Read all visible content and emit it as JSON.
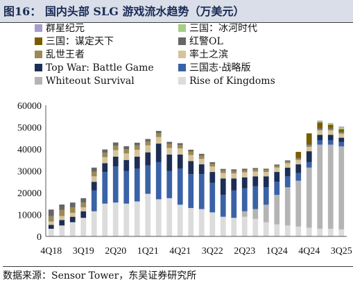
{
  "title": "图16：  国内头部 SLG 游戏流水趋势（万美元）",
  "source": "数据来源：Sensor Tower，东吴证券研究所",
  "chart_data": {
    "type": "bar",
    "stacked": true,
    "ylim": [
      0,
      60000
    ],
    "yticks": [
      0,
      10000,
      20000,
      30000,
      40000,
      50000,
      60000
    ],
    "categories": [
      "4Q18",
      "1Q19",
      "2Q19",
      "3Q19",
      "4Q19",
      "1Q20",
      "2Q20",
      "3Q20",
      "4Q20",
      "1Q21",
      "2Q21",
      "3Q21",
      "4Q21",
      "1Q22",
      "2Q22",
      "3Q22",
      "4Q22",
      "1Q23",
      "2Q23",
      "3Q23",
      "4Q23",
      "1Q24",
      "2Q24",
      "3Q24",
      "4Q24",
      "1Q25",
      "2Q25",
      "3Q25"
    ],
    "xtick_labels": [
      "4Q18",
      "3Q19",
      "2Q20",
      "1Q21",
      "4Q21",
      "3Q22",
      "2Q23",
      "1Q24",
      "4Q24",
      "3Q25"
    ],
    "legend_position": "top",
    "series": [
      {
        "name": "Rise of Kingdoms",
        "color": "#dcdcdc",
        "values": [
          3500,
          5000,
          6500,
          8500,
          11500,
          15000,
          15500,
          15000,
          16000,
          19500,
          17000,
          17500,
          14500,
          13000,
          12500,
          11000,
          9000,
          8500,
          9000,
          8000,
          6500,
          5500,
          5000,
          4500,
          4000,
          3500,
          3500,
          3200
        ]
      },
      {
        "name": "Whiteout Survival",
        "color": "#b4b4b4",
        "values": [
          0,
          0,
          0,
          0,
          0,
          0,
          0,
          0,
          0,
          0,
          0,
          0,
          0,
          0,
          0,
          0,
          0,
          0,
          2500,
          4500,
          8000,
          13500,
          17500,
          21000,
          27500,
          38500,
          38500,
          38000
        ]
      },
      {
        "name": "三国志·战略版",
        "color": "#3a62a6",
        "values": [
          0,
          0,
          0,
          0,
          9500,
          14500,
          16500,
          15000,
          15000,
          13000,
          17000,
          12500,
          16500,
          15500,
          16000,
          13500,
          10000,
          12500,
          10500,
          10500,
          8000,
          6000,
          5000,
          3500,
          2500,
          2000,
          2000,
          2000
        ]
      },
      {
        "name": "Top War: Battle Game",
        "color": "#1c2e55",
        "values": [
          1800,
          2500,
          2500,
          3000,
          4000,
          4000,
          4500,
          5000,
          5500,
          6000,
          8500,
          7500,
          6500,
          6000,
          4500,
          5000,
          7500,
          5500,
          5000,
          4500,
          5000,
          4500,
          4000,
          4000,
          5000,
          2500,
          2500,
          2000
        ]
      },
      {
        "name": "率土之滨",
        "color": "#d5c49a",
        "values": [
          1500,
          1800,
          1800,
          1800,
          2500,
          2800,
          3000,
          3000,
          3200,
          3200,
          3000,
          3000,
          2800,
          2800,
          2500,
          2500,
          2500,
          2300,
          2300,
          2200,
          2000,
          2000,
          2000,
          2000,
          2000,
          2000,
          2000,
          1800
        ]
      },
      {
        "name": "乱世王者",
        "color": "#9a8a55",
        "values": [
          2500,
          2800,
          2500,
          2200,
          2200,
          2000,
          2000,
          2000,
          2000,
          1800,
          1800,
          1800,
          1500,
          1500,
          1500,
          1200,
          1200,
          1200,
          1000,
          1000,
          900,
          800,
          800,
          700,
          700,
          700,
          600,
          600
        ]
      },
      {
        "name": "红警OL",
        "color": "#666666",
        "values": [
          3000,
          2500,
          2200,
          2000,
          1800,
          1500,
          1500,
          1300,
          1200,
          1100,
          1000,
          1000,
          900,
          900,
          800,
          800,
          700,
          700,
          700,
          600,
          600,
          600,
          500,
          500,
          500,
          500,
          500,
          500
        ]
      },
      {
        "name": "三国：谋定天下",
        "color": "#7a5c00",
        "values": [
          0,
          0,
          0,
          0,
          0,
          0,
          0,
          0,
          0,
          0,
          0,
          0,
          0,
          0,
          0,
          0,
          0,
          0,
          0,
          0,
          0,
          0,
          0,
          2500,
          5000,
          2500,
          1500,
          1000
        ]
      },
      {
        "name": "三国：冰河时代",
        "color": "#a6cf86",
        "values": [
          0,
          0,
          0,
          0,
          0,
          0,
          0,
          0,
          0,
          0,
          0,
          0,
          0,
          0,
          0,
          0,
          0,
          0,
          0,
          0,
          0,
          0,
          0,
          0,
          0,
          500,
          500,
          700
        ]
      },
      {
        "name": "群星纪元",
        "color": "#a89ccb",
        "values": [
          0,
          0,
          0,
          0,
          0,
          0,
          0,
          0,
          0,
          0,
          0,
          0,
          0,
          0,
          0,
          0,
          0,
          0,
          0,
          0,
          0,
          0,
          0,
          0,
          0,
          300,
          300,
          500
        ]
      }
    ]
  }
}
